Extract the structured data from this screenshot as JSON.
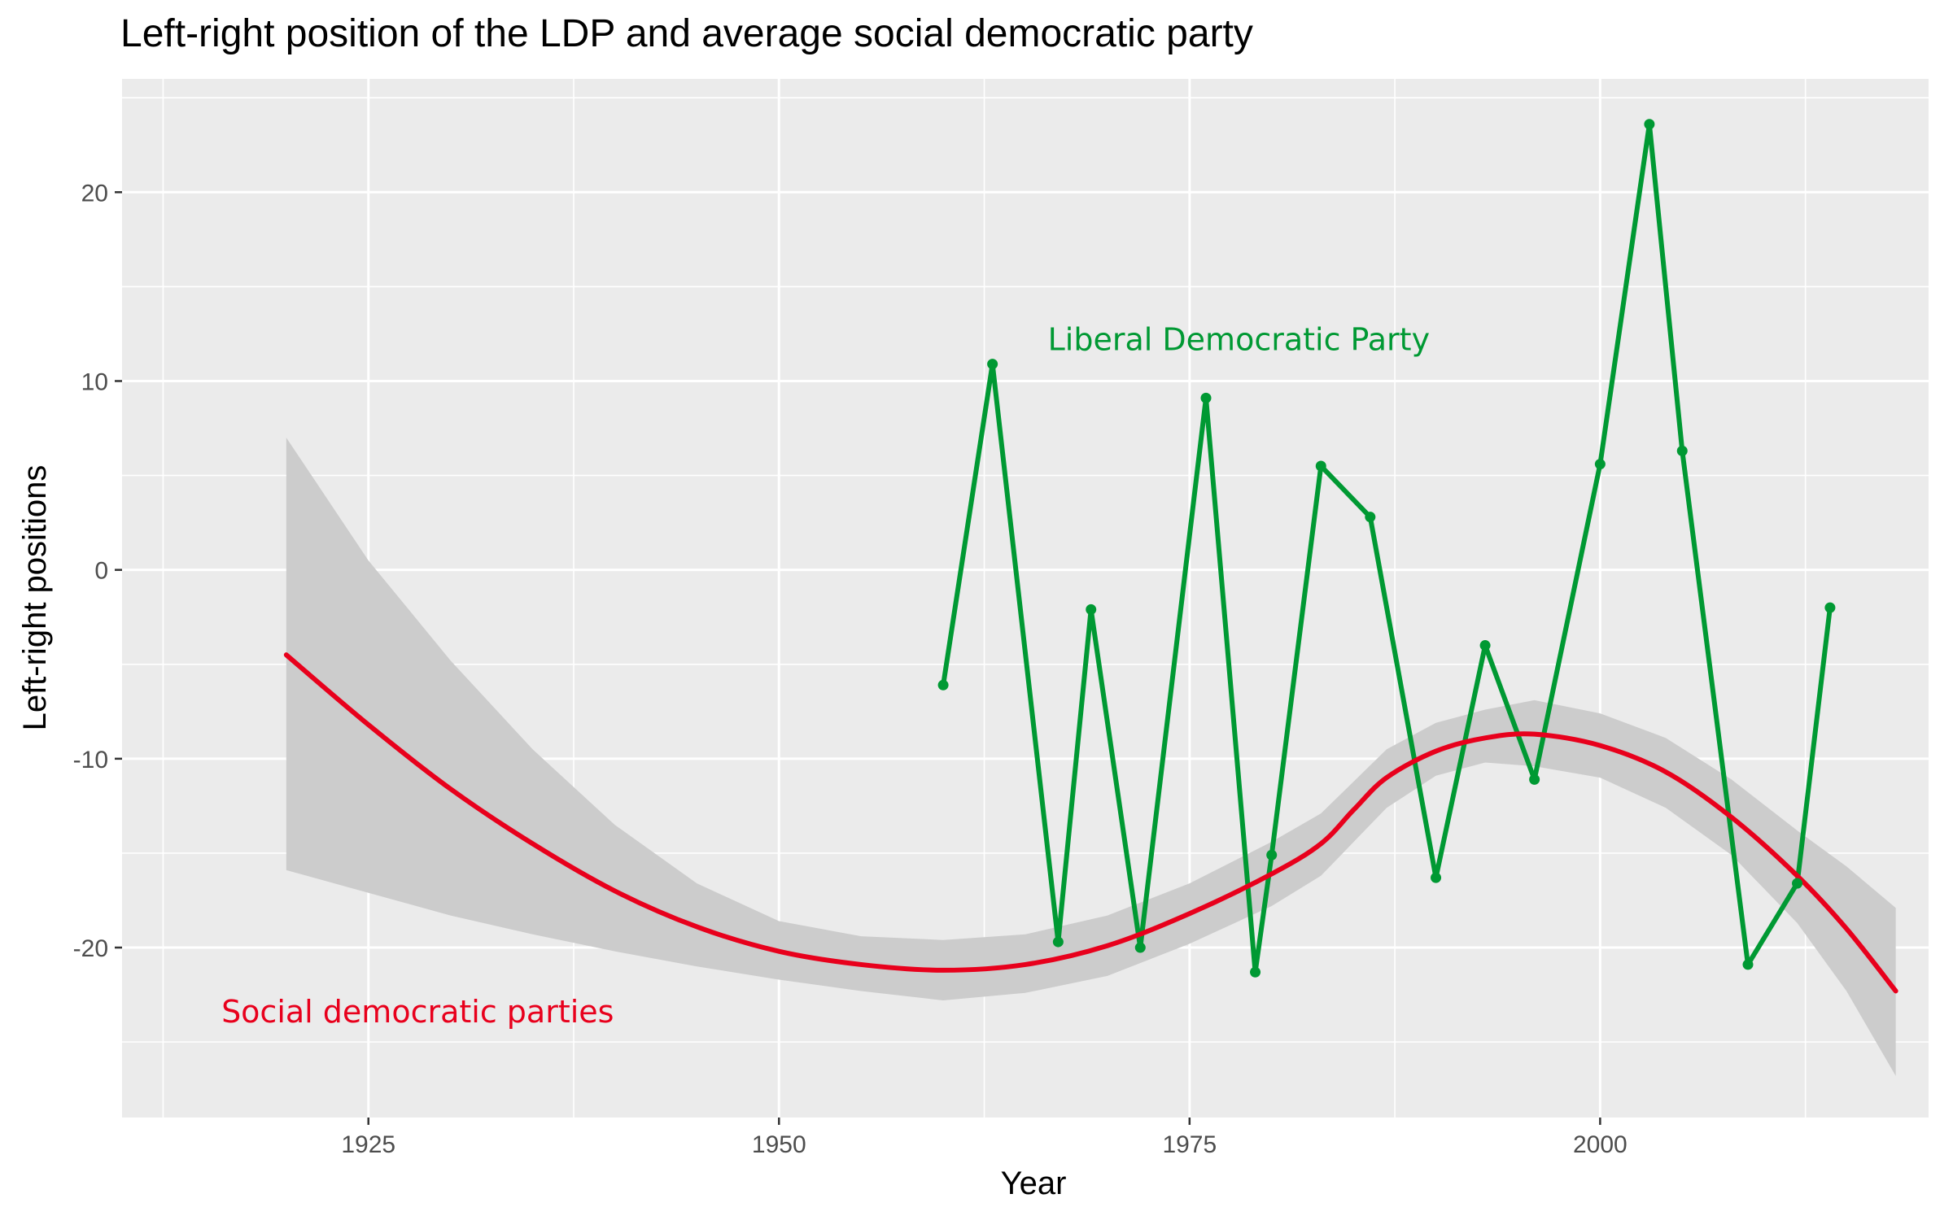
{
  "title": "Left-right position of the LDP and average social democratic party",
  "chart_data": {
    "type": "line",
    "title": "Left-right position of the LDP and average social democratic party",
    "xlabel": "Year",
    "ylabel": "Left-right positions",
    "xlim": [
      1910,
      2020
    ],
    "ylim": [
      -29,
      26
    ],
    "x_ticks": [
      1925,
      1950,
      1975,
      2000
    ],
    "y_ticks": [
      -20,
      -10,
      0,
      10,
      20
    ],
    "x_tick_labels": [
      "1925",
      "1950",
      "1975",
      "2000"
    ],
    "y_tick_labels": [
      "-20",
      "-10",
      "0",
      "10",
      "20"
    ],
    "grid": true,
    "background": "#ebebeb",
    "series": [
      {
        "name": "Liberal Democratic Party",
        "kind": "line+points",
        "color": "#009933",
        "x": [
          1960,
          1963,
          1967,
          1969,
          1972,
          1976,
          1979,
          1980,
          1983,
          1986,
          1990,
          1993,
          1996,
          2000,
          2003,
          2005,
          2009,
          2012,
          2014
        ],
        "y": [
          -6.1,
          10.9,
          -19.7,
          -2.1,
          -20.0,
          9.1,
          -21.3,
          -15.1,
          5.5,
          2.8,
          -16.3,
          -4.0,
          -11.1,
          5.6,
          23.6,
          6.3,
          -20.9,
          -16.6,
          -2.0
        ]
      },
      {
        "name": "Social democratic parties",
        "kind": "smooth+ribbon",
        "color": "#e8001c",
        "ribbon_color": "#cccccc",
        "x": [
          1920,
          1925,
          1930,
          1935,
          1940,
          1945,
          1950,
          1955,
          1960,
          1965,
          1970,
          1975,
          1980,
          1983,
          1985,
          1987,
          1990,
          1993,
          1996,
          2000,
          2004,
          2008,
          2012,
          2015,
          2018
        ],
        "y": [
          -4.5,
          -8.2,
          -11.6,
          -14.5,
          -17.0,
          -18.9,
          -20.2,
          -20.9,
          -21.2,
          -20.9,
          -19.9,
          -18.2,
          -16.1,
          -14.5,
          -12.7,
          -11.0,
          -9.6,
          -8.9,
          -8.7,
          -9.3,
          -10.7,
          -13.1,
          -16.2,
          -19.0,
          -22.3
        ],
        "lower": [
          -15.9,
          -17.1,
          -18.3,
          -19.3,
          -20.2,
          -21.0,
          -21.7,
          -22.3,
          -22.8,
          -22.4,
          -21.5,
          -19.8,
          -17.8,
          -16.2,
          -14.4,
          -12.6,
          -10.9,
          -10.2,
          -10.4,
          -11.0,
          -12.6,
          -15.1,
          -18.7,
          -22.3,
          -26.8
        ],
        "upper": [
          7.0,
          0.5,
          -4.8,
          -9.5,
          -13.5,
          -16.6,
          -18.6,
          -19.4,
          -19.6,
          -19.3,
          -18.3,
          -16.6,
          -14.4,
          -12.9,
          -11.2,
          -9.5,
          -8.1,
          -7.4,
          -6.9,
          -7.6,
          -8.9,
          -11.1,
          -13.8,
          -15.7,
          -17.9
        ]
      }
    ],
    "annotations": [
      {
        "text": "Liberal Democratic Party",
        "x": 1978,
        "y": 12.2,
        "color": "#009933"
      },
      {
        "text": "Social democratic parties",
        "x": 1928,
        "y": -23.4,
        "color": "#e8001c"
      }
    ]
  }
}
